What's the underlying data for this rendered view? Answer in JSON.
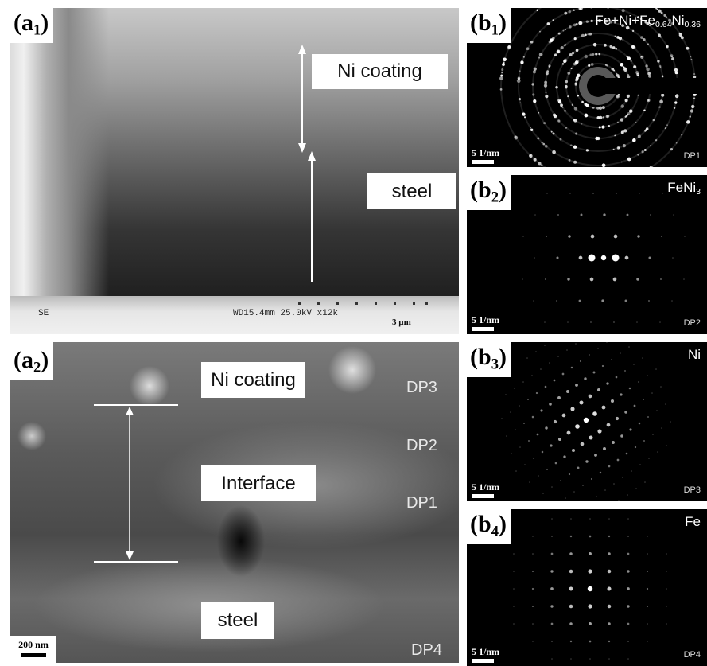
{
  "panel_a1": {
    "label": {
      "open": "(a",
      "sub": "1",
      "close": ")"
    },
    "coating": "Ni coating",
    "substrate": "steel",
    "detector": "SE",
    "parameters": "WD15.4mm 25.0kV x12k",
    "scale_bar": "3 µm"
  },
  "panel_a2": {
    "label": {
      "open": "(a",
      "sub": "2",
      "close": ")"
    },
    "coating": "Ni coating",
    "interface": "Interface",
    "substrate": "steel",
    "points": [
      "DP3",
      "DP2",
      "DP1",
      "DP4"
    ],
    "scale_bar": "200 nm"
  },
  "panels_b": [
    {
      "label": {
        "open": "(b",
        "sub": "1",
        "close": ")"
      },
      "phase": [
        {
          "text": "Fe+Ni+Fe"
        },
        {
          "text": "0.64",
          "sub": true
        },
        {
          "text": "Ni"
        },
        {
          "text": "0.36",
          "sub": true
        }
      ],
      "scale_bar": "5 1/nm",
      "point": "DP1"
    },
    {
      "label": {
        "open": "(b",
        "sub": "2",
        "close": ")"
      },
      "phase": [
        {
          "text": "FeNi"
        },
        {
          "text": "3",
          "sub": true
        }
      ],
      "scale_bar": "5 1/nm",
      "point": "DP2"
    },
    {
      "label": {
        "open": "(b",
        "sub": "3",
        "close": ")"
      },
      "phase": [
        {
          "text": "Ni"
        }
      ],
      "scale_bar": "5 1/nm",
      "point": "DP3"
    },
    {
      "label": {
        "open": "(b",
        "sub": "4",
        "close": ")"
      },
      "phase": [
        {
          "text": "Fe"
        }
      ],
      "scale_bar": "5 1/nm",
      "point": "DP4"
    }
  ]
}
